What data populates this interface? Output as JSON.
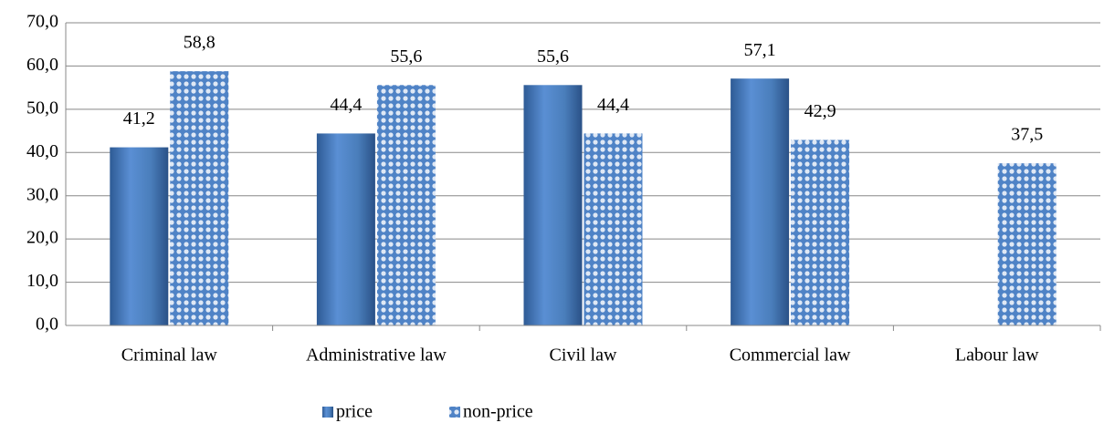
{
  "chart_data": {
    "type": "bar",
    "categories": [
      "Criminal law",
      "Administrative law",
      "Civil law",
      "Commercial law",
      "Labour law"
    ],
    "series": [
      {
        "name": "price",
        "color": "#4a7ebb",
        "values": [
          41.2,
          44.4,
          55.6,
          57.1,
          null
        ],
        "value_labels": [
          "41,2",
          "44,4",
          "55,6",
          "57,1",
          null
        ]
      },
      {
        "name": "non-price",
        "color": "#5b8fd0",
        "values": [
          58.8,
          55.6,
          44.4,
          42.9,
          37.5
        ],
        "value_labels": [
          "58,8",
          "55,6",
          "44,4",
          "42,9",
          "37,5"
        ]
      }
    ],
    "ylim": [
      0,
      70
    ],
    "yticks": [
      {
        "value": 0,
        "label": "0,0"
      },
      {
        "value": 10,
        "label": "10,0"
      },
      {
        "value": 20,
        "label": "20,0"
      },
      {
        "value": 30,
        "label": "30,0"
      },
      {
        "value": 40,
        "label": "40,0"
      },
      {
        "value": 50,
        "label": "50,0"
      },
      {
        "value": 60,
        "label": "60,0"
      },
      {
        "value": 70,
        "label": "70,0"
      }
    ],
    "grid": true,
    "legend": "bottom"
  }
}
